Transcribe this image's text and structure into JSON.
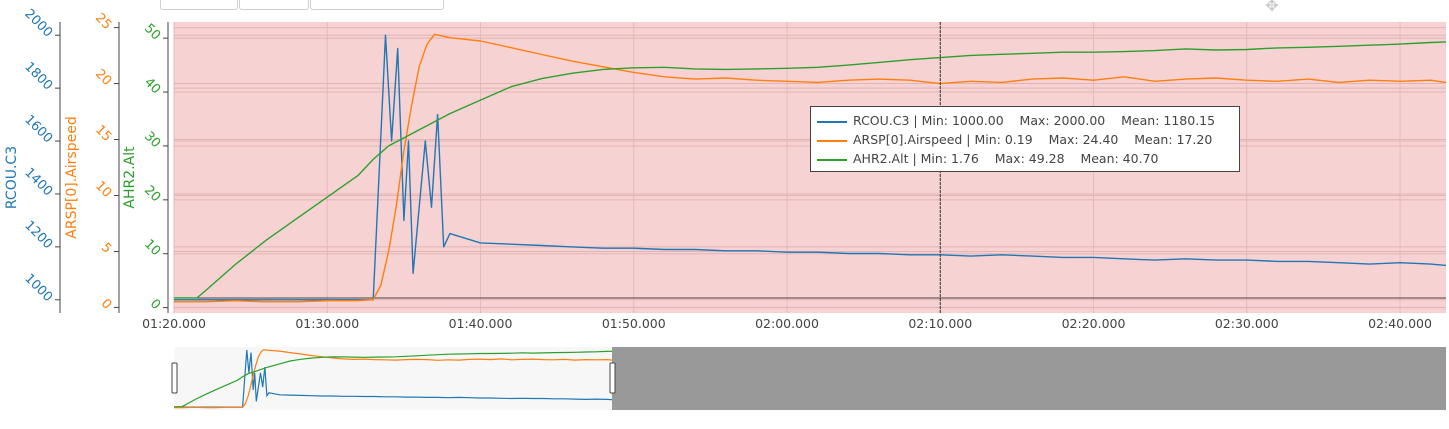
{
  "toolbar": {
    "tabs": [
      "",
      "",
      ""
    ]
  },
  "icons": {
    "move": "move-icon"
  },
  "colors": {
    "rcou": "#1f77b4",
    "arsp": "#ff7f0e",
    "ahr2": "#2ca02c",
    "plot_bg": "#f7d2d3",
    "range_selected": "#999999"
  },
  "chart_data": {
    "type": "line",
    "x_range": [
      "01:20.000",
      "02:43.000"
    ],
    "x_ticks": [
      "01:20.000",
      "01:30.000",
      "01:40.000",
      "01:50.000",
      "02:00.000",
      "02:10.000",
      "02:20.000",
      "02:30.000",
      "02:40.000"
    ],
    "cursor_x": "02:10.000",
    "grid": true,
    "axes": [
      {
        "id": "rcou",
        "title": "RCOU.C3",
        "range": [
          950,
          2050
        ],
        "ticks": [
          1000,
          1200,
          1400,
          1600,
          1800,
          2000
        ]
      },
      {
        "id": "arsp",
        "title": "ARSP[0].Airspeed",
        "range": [
          -0.5,
          25.5
        ],
        "ticks": [
          0,
          5,
          10,
          15,
          20,
          25
        ]
      },
      {
        "id": "ahr2",
        "title": "AHR2.Alt",
        "range": [
          -1,
          53
        ],
        "ticks": [
          0,
          10,
          20,
          30,
          40,
          50
        ]
      }
    ],
    "series": [
      {
        "name": "RCOU.C3",
        "axis": "rcou",
        "x": [
          80,
          81,
          82,
          83,
          84,
          85,
          86,
          87,
          88,
          89,
          90,
          91,
          92,
          93,
          93.4,
          93.8,
          94.2,
          94.6,
          95,
          95.3,
          95.6,
          96,
          96.4,
          96.8,
          97.2,
          97.6,
          98,
          100,
          102,
          104,
          106,
          108,
          110,
          112,
          114,
          116,
          118,
          120,
          122,
          124,
          126,
          128,
          130,
          132,
          134,
          136,
          138,
          140,
          142,
          144,
          146,
          148,
          150,
          152,
          154,
          156,
          158,
          160,
          162,
          163
        ],
        "y": [
          1000,
          1000,
          1000,
          1000,
          1000,
          1000,
          1000,
          1000,
          1000,
          1000,
          1000,
          1000,
          1000,
          1000,
          1500,
          2000,
          1600,
          1950,
          1300,
          1600,
          1100,
          1350,
          1600,
          1350,
          1700,
          1200,
          1250,
          1215,
          1210,
          1205,
          1200,
          1195,
          1195,
          1190,
          1190,
          1185,
          1185,
          1180,
          1180,
          1175,
          1175,
          1170,
          1170,
          1165,
          1170,
          1165,
          1160,
          1160,
          1155,
          1150,
          1155,
          1150,
          1150,
          1145,
          1145,
          1140,
          1135,
          1140,
          1135,
          1130
        ]
      },
      {
        "name": "ARSP[0].Airspeed",
        "axis": "arsp",
        "x": [
          80,
          82,
          84,
          86,
          88,
          90,
          92,
          93,
          93.5,
          94,
          94.5,
          95,
          95.5,
          96,
          96.5,
          97,
          98,
          100,
          102,
          104,
          106,
          108,
          110,
          112,
          114,
          116,
          118,
          120,
          122,
          124,
          126,
          128,
          130,
          132,
          134,
          136,
          138,
          140,
          142,
          144,
          146,
          148,
          150,
          152,
          154,
          156,
          158,
          160,
          162,
          163
        ],
        "y": [
          0.5,
          0.5,
          0.6,
          0.5,
          0.5,
          0.6,
          0.6,
          0.7,
          2,
          5,
          9,
          14,
          18,
          21.5,
          23.5,
          24.4,
          24.1,
          23.8,
          23.2,
          22.6,
          22.0,
          21.5,
          21.0,
          20.6,
          20.4,
          20.5,
          20.3,
          20.2,
          20.1,
          20.3,
          20.4,
          20.3,
          20.0,
          20.2,
          20.1,
          20.4,
          20.5,
          20.3,
          20.6,
          20.2,
          20.4,
          20.5,
          20.3,
          20.2,
          20.4,
          20.1,
          20.3,
          20.2,
          20.3,
          20.1
        ]
      },
      {
        "name": "AHR2.Alt",
        "axis": "ahr2",
        "x": [
          80,
          81.5,
          82,
          84,
          86,
          88,
          90,
          92,
          93,
          94,
          95,
          96,
          98,
          100,
          102,
          104,
          106,
          108,
          110,
          112,
          114,
          116,
          118,
          120,
          122,
          124,
          126,
          128,
          130,
          132,
          134,
          136,
          138,
          140,
          142,
          144,
          146,
          148,
          150,
          152,
          154,
          156,
          158,
          160,
          162,
          163
        ],
        "y": [
          1.8,
          1.8,
          3,
          8,
          12.5,
          16.5,
          20.5,
          24.5,
          27.5,
          30,
          31.5,
          33,
          36,
          38.5,
          41,
          42.5,
          43.5,
          44.2,
          44.5,
          44.6,
          44.3,
          44.2,
          44.3,
          44.4,
          44.6,
          45,
          45.5,
          46,
          46.4,
          46.8,
          47,
          47.2,
          47.4,
          47.4,
          47.5,
          47.7,
          48,
          47.8,
          47.9,
          48.2,
          48.3,
          48.5,
          48.7,
          48.9,
          49.2,
          49.3
        ]
      }
    ],
    "legend": {
      "position": "top-right",
      "entries": [
        {
          "series": "RCOU.C3",
          "text": "RCOU.C3 | Min: 1000.00    Max: 2000.00    Mean: 1180.15"
        },
        {
          "series": "ARSP[0].Airspeed",
          "text": "ARSP[0].Airspeed | Min: 0.19    Max: 24.40    Mean: 17.20"
        },
        {
          "series": "AHR2.Alt",
          "text": "AHR2.Alt | Min: 1.76    Max: 49.28    Mean: 40.70"
        }
      ]
    }
  }
}
